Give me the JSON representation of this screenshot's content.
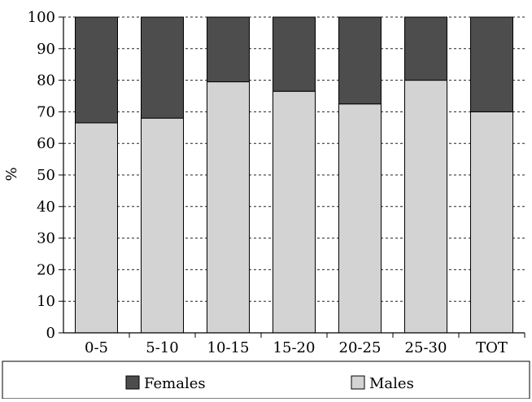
{
  "chart_data": {
    "type": "bar",
    "stacked": true,
    "percent": true,
    "categories": [
      "0-5",
      "5-10",
      "10-15",
      "15-20",
      "20-25",
      "25-30",
      "TOT"
    ],
    "series": [
      {
        "name": "Males",
        "values": [
          66.5,
          68,
          79.5,
          76.5,
          72.5,
          80,
          70
        ],
        "color": "#d3d3d3"
      },
      {
        "name": "Females",
        "values": [
          33.5,
          32,
          20.5,
          23.5,
          27.5,
          20,
          30
        ],
        "color": "#4d4d4d"
      }
    ],
    "yticks": [
      0,
      10,
      20,
      30,
      40,
      50,
      60,
      70,
      80,
      90,
      100
    ],
    "ylim": [
      0,
      100
    ],
    "ylabel": "%",
    "xlabel": "",
    "title": "",
    "grid": "horizontal-dashed",
    "legend_position": "bottom",
    "legend_order": [
      "Females",
      "Males"
    ]
  }
}
